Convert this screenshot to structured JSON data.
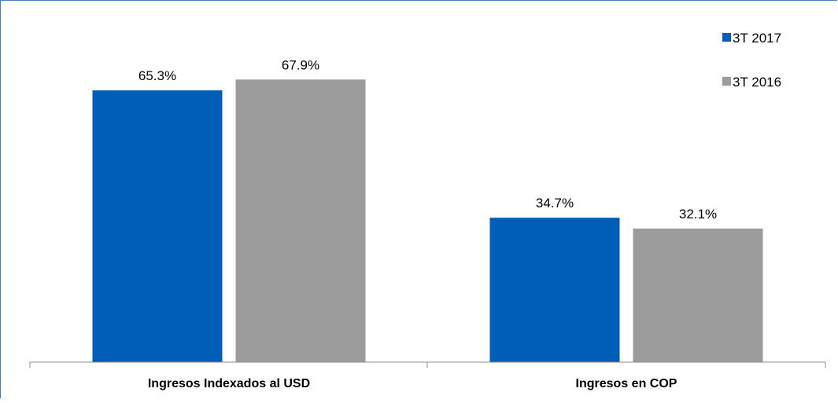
{
  "chart_data": {
    "type": "bar",
    "categories": [
      "Ingresos Indexados al USD",
      "Ingresos en COP"
    ],
    "series": [
      {
        "name": "3T 2017",
        "values": [
          65.3,
          34.7
        ],
        "labels": [
          "65.3%",
          "34.7%"
        ],
        "color": "#005eb8"
      },
      {
        "name": "3T 2016",
        "values": [
          67.9,
          32.1
        ],
        "labels": [
          "67.9%",
          "32.1%"
        ],
        "color": "#9b9b9b"
      }
    ],
    "ylim": [
      0,
      80
    ],
    "grid": false,
    "legend_position": "top-right",
    "axis_color": "#8c8c8c"
  }
}
